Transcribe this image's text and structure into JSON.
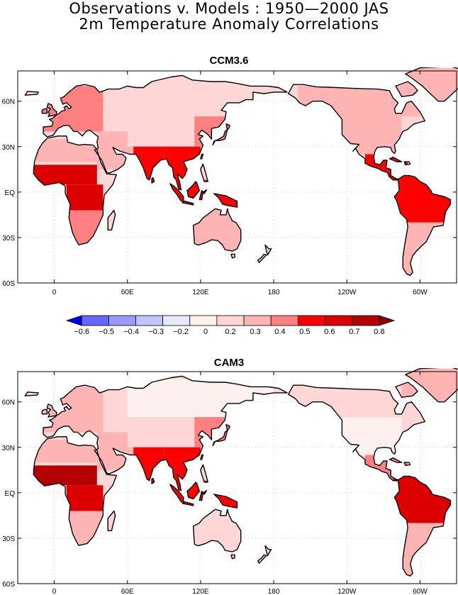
{
  "title": {
    "line1": "Observations v. Models : 1950—2000 JAS",
    "line2": "2m Temperature Anomaly Correlations"
  },
  "panels": [
    {
      "name": "CCM3.6"
    },
    {
      "name": "CAM3"
    }
  ],
  "axes": {
    "lat_ticks": [
      {
        "lat": 60,
        "label": "60N"
      },
      {
        "lat": 30,
        "label": "30N"
      },
      {
        "lat": 0,
        "label": "EQ"
      },
      {
        "lat": -30,
        "label": "30S"
      },
      {
        "lat": -60,
        "label": "60S"
      }
    ],
    "lon_ticks": [
      {
        "lon": 0,
        "label": "0"
      },
      {
        "lon": 60,
        "label": "60E"
      },
      {
        "lon": 120,
        "label": "120E"
      },
      {
        "lon": 180,
        "label": "180"
      },
      {
        "lon": 240,
        "label": "120W"
      },
      {
        "lon": 300,
        "label": "60W"
      }
    ],
    "lon_range": [
      -30,
      330
    ],
    "lat_range": [
      -60,
      80
    ]
  },
  "colorbar": {
    "labels": [
      "-0.6",
      "-0.5",
      "-0.4",
      "-0.3",
      "-0.2",
      "0",
      "0.2",
      "0.3",
      "0.4",
      "0.5",
      "0.6",
      "0.7",
      "0.8"
    ],
    "colors": [
      "#0000ff",
      "#6666ff",
      "#9999ff",
      "#c4c4ff",
      "#e8e8ff",
      "#fff0f0",
      "#ffd6d6",
      "#ffb4b4",
      "#ff8080",
      "#ff0000",
      "#dd0000",
      "#b40000",
      "#8c0000"
    ]
  },
  "chart_data": [
    {
      "type": "heatmap",
      "title": "CCM3.6",
      "variable": "2m temperature anomaly correlation (observations vs model), JAS 1950-2000",
      "regions": [
        {
          "region": "Central/West Africa",
          "value": 0.6
        },
        {
          "region": "Sahara/North Africa",
          "value": 0.3
        },
        {
          "region": "Europe",
          "value": 0.4
        },
        {
          "region": "Northern Eurasia/Siberia",
          "value": 0.2
        },
        {
          "region": "Central Asia",
          "value": 0.2
        },
        {
          "region": "India",
          "value": 0.5
        },
        {
          "region": "Southeast Asia",
          "value": 0.5
        },
        {
          "region": "Maritime Continent",
          "value": 0.5
        },
        {
          "region": "Australia",
          "value": 0.3
        },
        {
          "region": "North America",
          "value": 0.3
        },
        {
          "region": "Central America",
          "value": 0.5
        },
        {
          "region": "Northern South America",
          "value": 0.5
        },
        {
          "region": "Southern South America",
          "value": 0.3
        }
      ]
    },
    {
      "type": "heatmap",
      "title": "CAM3",
      "variable": "2m temperature anomaly correlation (observations vs model), JAS 1950-2000",
      "regions": [
        {
          "region": "Central/West Africa",
          "value": 0.7
        },
        {
          "region": "Sahara/North Africa",
          "value": 0.3
        },
        {
          "region": "Europe",
          "value": 0.3
        },
        {
          "region": "Northern Eurasia/Siberia",
          "value": 0.0
        },
        {
          "region": "Central Asia",
          "value": 0.2
        },
        {
          "region": "India",
          "value": 0.5
        },
        {
          "region": "Southeast Asia",
          "value": 0.5
        },
        {
          "region": "Maritime Continent",
          "value": 0.5
        },
        {
          "region": "Australia",
          "value": 0.2
        },
        {
          "region": "North America",
          "value": 0.2
        },
        {
          "region": "Central America",
          "value": 0.4
        },
        {
          "region": "Northern South America",
          "value": 0.6
        },
        {
          "region": "Southern South America",
          "value": 0.3
        }
      ]
    }
  ]
}
